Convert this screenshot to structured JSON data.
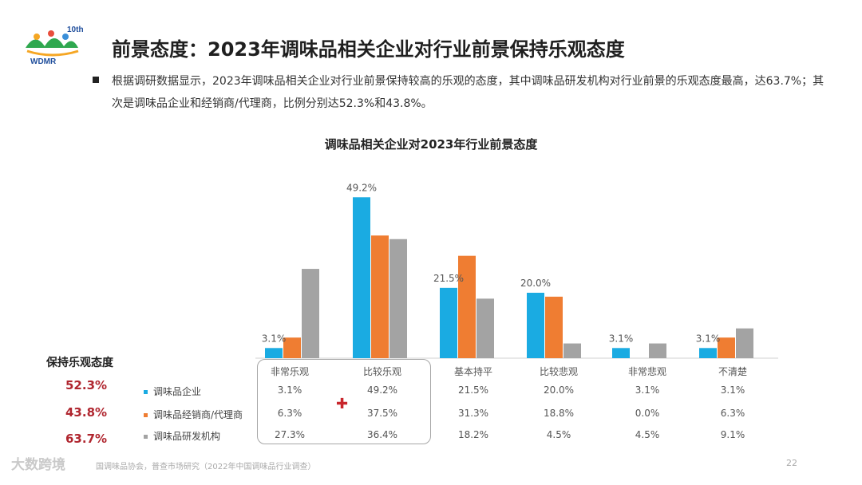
{
  "logo": {
    "text": "WDMR",
    "badge": "10th"
  },
  "title": "前景态度：2023年调味品相关企业对行业前景保持乐观态度",
  "bullet": "根据调研数据显示，2023年调味品相关企业对行业前景保持较高的乐观的态度，其中调味品研发机构对行业前景的乐观态度最高，达63.7%；其次是调味品企业和经销商/代理商，比例分别达52.3%和43.8%。",
  "chart_data": {
    "type": "bar",
    "title": "调味品相关企业对2023年行业前景态度",
    "categories": [
      "非常乐观",
      "比较乐观",
      "基本持平",
      "比较悲观",
      "非常悲观",
      "不清楚"
    ],
    "series": [
      {
        "name": "调味品企业",
        "color": "#1aabe2",
        "values": [
          3.1,
          49.2,
          21.5,
          20.0,
          3.1,
          3.1
        ]
      },
      {
        "name": "调味品经销商/代理商",
        "color": "#ef7d32",
        "values": [
          6.3,
          37.5,
          31.3,
          18.8,
          0.0,
          6.3
        ]
      },
      {
        "name": "调味品研发机构",
        "color": "#a3a3a3",
        "values": [
          27.3,
          36.4,
          18.2,
          4.5,
          4.5,
          9.1
        ]
      }
    ],
    "bar_labels": [
      "3.1%",
      "49.2%",
      "21.5%",
      "20.0%",
      "3.1%",
      "3.1%"
    ],
    "table_values": [
      [
        "3.1%",
        "49.2%",
        "21.5%",
        "20.0%",
        "3.1%",
        "3.1%"
      ],
      [
        "6.3%",
        "37.5%",
        "31.3%",
        "18.8%",
        "0.0%",
        "6.3%"
      ],
      [
        "27.3%",
        "36.4%",
        "18.2%",
        "4.5%",
        "4.5%",
        "9.1%"
      ]
    ],
    "ylim": [
      0,
      50
    ],
    "grid": false
  },
  "optimism": {
    "title": "保持乐观态度",
    "values": [
      "52.3%",
      "43.8%",
      "63.7%"
    ]
  },
  "source": "国调味品协会，普查市场研究（2022年中国调味品行业调查）",
  "page_number": "22",
  "watermark": "大数跨境"
}
